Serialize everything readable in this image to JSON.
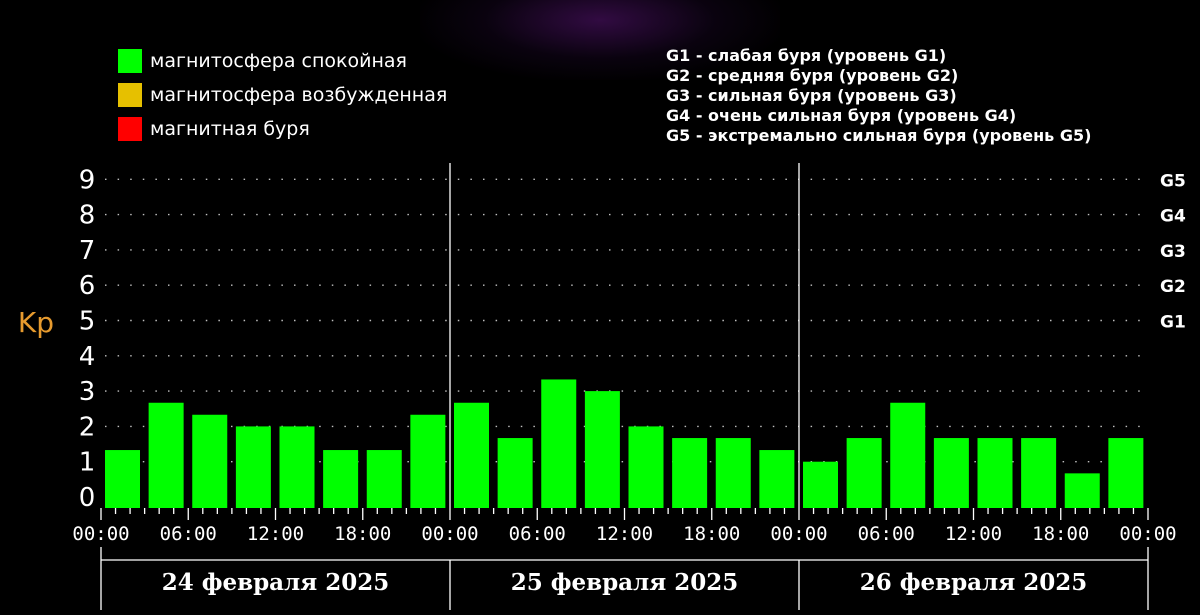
{
  "legend": [
    {
      "label": "магнитосфера спокойная",
      "color": "#00ff00"
    },
    {
      "label": "магнитосфера возбужденная",
      "color": "#e6c000"
    },
    {
      "label": "магнитная буря",
      "color": "#ff0000"
    }
  ],
  "storm_legend": [
    "G1 - слабая буря (уровень G1)",
    "G2 - средняя буря (уровень G2)",
    "G3 - сильная буря (уровень G3)",
    "G4 - очень сильная буря (уровень G4)",
    "G5 - экстремально сильная буря (уровень G5)"
  ],
  "colors": {
    "calm": "#00ff00",
    "axis_label": "#e69a2e",
    "grid": "#ffffff",
    "background": "#000000"
  },
  "chart_data": {
    "type": "bar",
    "ylabel": "Kp",
    "ylim": [
      0,
      9
    ],
    "y_ticks": [
      "0",
      "1",
      "2",
      "3",
      "4",
      "5",
      "6",
      "7",
      "8",
      "9"
    ],
    "g_levels": [
      {
        "label": "G1",
        "kp": 5
      },
      {
        "label": "G2",
        "kp": 6
      },
      {
        "label": "G3",
        "kp": 7
      },
      {
        "label": "G4",
        "kp": 8
      },
      {
        "label": "G5",
        "kp": 9
      }
    ],
    "x_tick_labels": [
      "00:00",
      "06:00",
      "12:00",
      "18:00",
      "00:00",
      "06:00",
      "12:00",
      "18:00",
      "00:00",
      "06:00",
      "12:00",
      "18:00",
      "00:00"
    ],
    "days": [
      {
        "label": "24 февраля 2025",
        "values": [
          1.33,
          2.67,
          2.33,
          2.0,
          2.0,
          1.33,
          1.33,
          2.33
        ]
      },
      {
        "label": "25 февраля 2025",
        "values": [
          2.67,
          1.67,
          3.33,
          3.0,
          2.0,
          1.67,
          1.67,
          1.33
        ]
      },
      {
        "label": "26 февраля 2025",
        "values": [
          1.0,
          1.67,
          2.67,
          1.67,
          1.67,
          1.67,
          0.67,
          1.67
        ]
      }
    ],
    "grid": true
  }
}
